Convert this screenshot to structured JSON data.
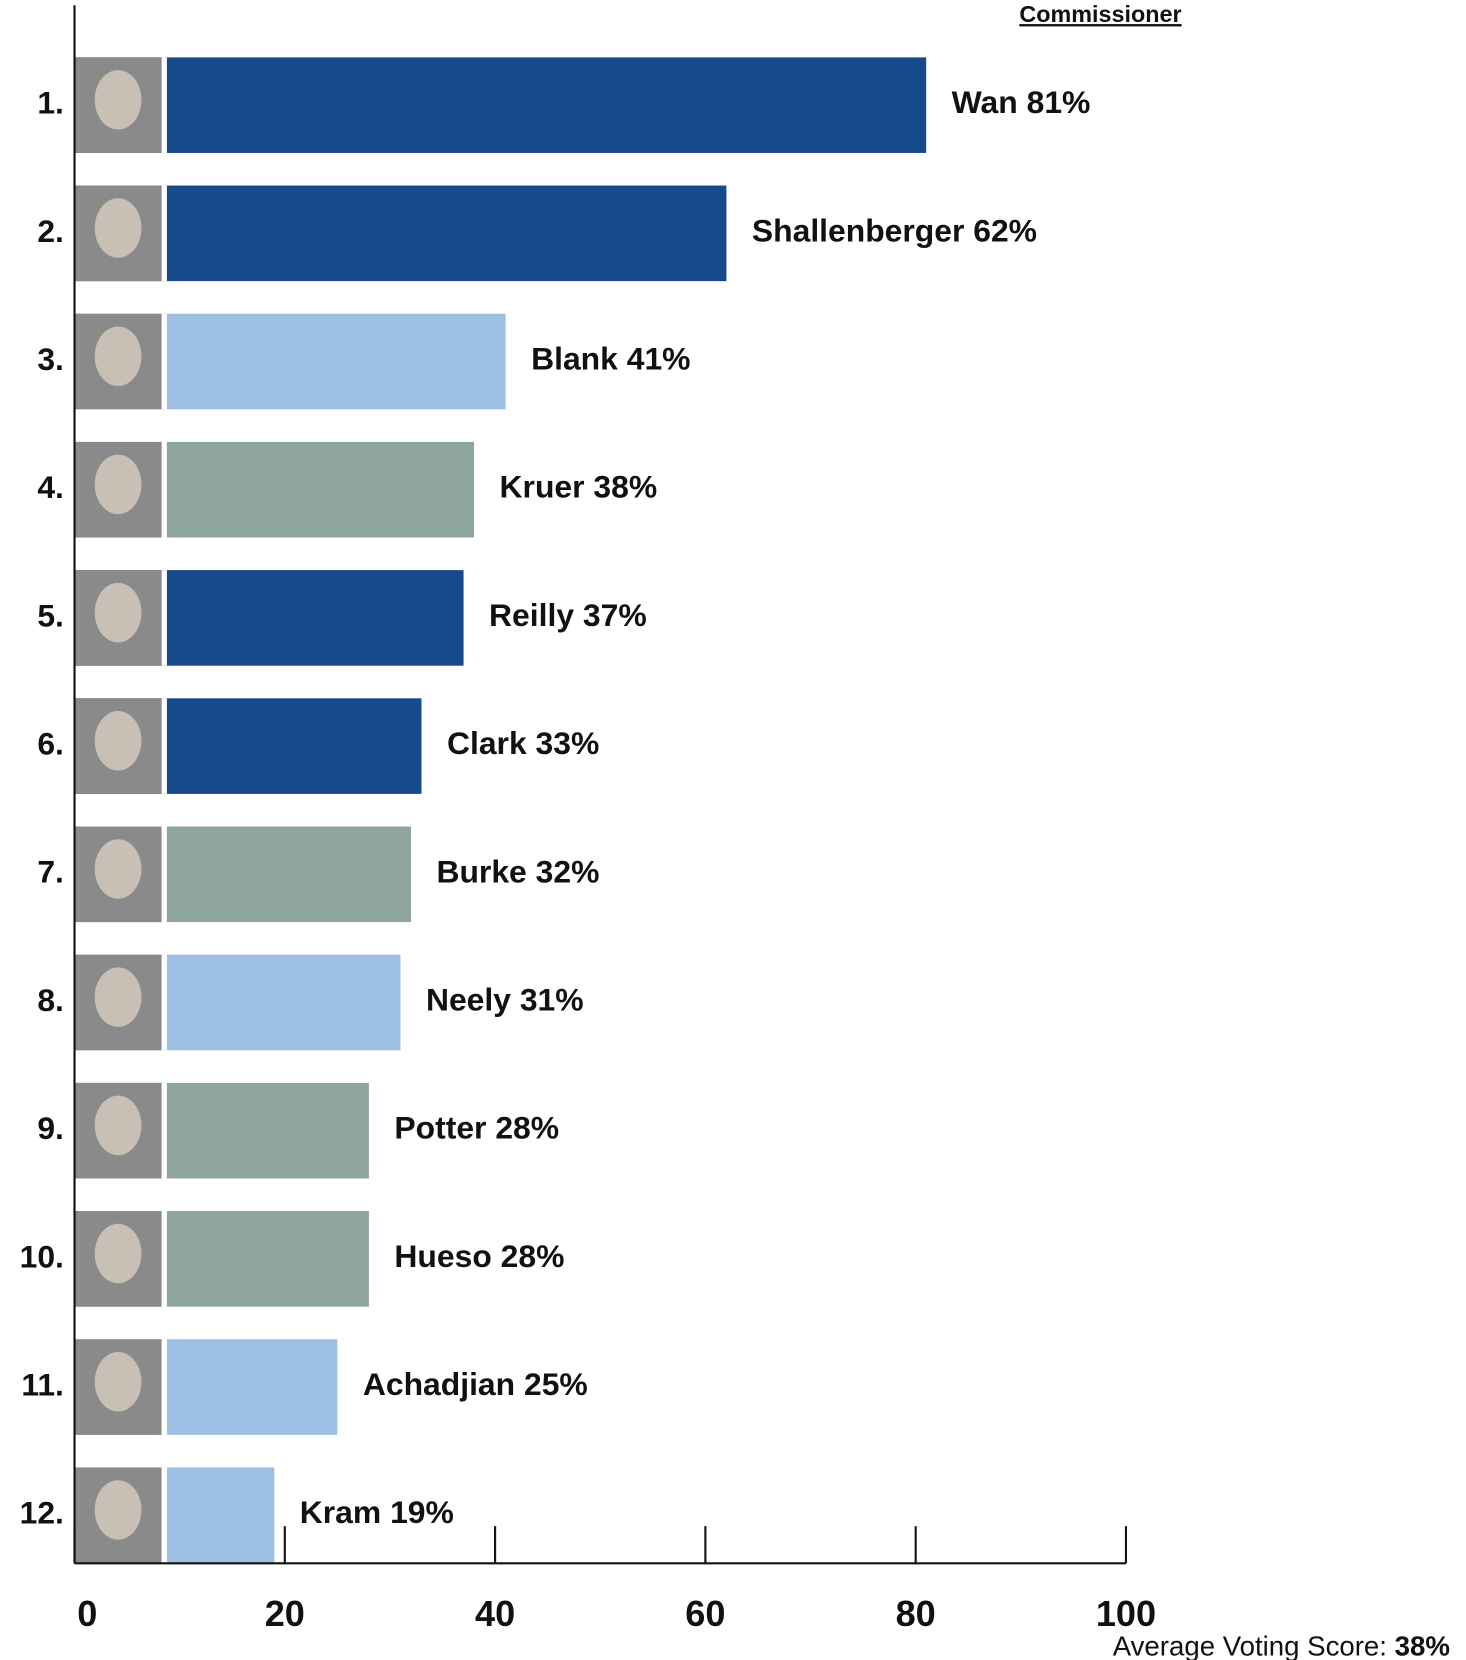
{
  "chart_data": {
    "type": "bar",
    "orientation": "horizontal",
    "header": "Commissioner",
    "ranks": [
      "1.",
      "2.",
      "3.",
      "4.",
      "5.",
      "6.",
      "7.",
      "8.",
      "9.",
      "10.",
      "11.",
      "12."
    ],
    "categories": [
      "Wan",
      "Shallenberger",
      "Blank",
      "Kruer",
      "Reilly",
      "Clark",
      "Burke",
      "Neely",
      "Potter",
      "Hueso",
      "Achadjian",
      "Kram"
    ],
    "values": [
      81,
      62,
      41,
      38,
      37,
      33,
      32,
      31,
      28,
      28,
      25,
      19
    ],
    "value_labels": [
      "81%",
      "62%",
      "41%",
      "38%",
      "37%",
      "33%",
      "32%",
      "31%",
      "28%",
      "28%",
      "25%",
      "19%"
    ],
    "colors": [
      "#174a8b",
      "#174a8b",
      "#9dc0e4",
      "#8fa5a0",
      "#174a8b",
      "#174a8b",
      "#8fa5a0",
      "#9dc0e4",
      "#8fa5a0",
      "#8fa5a0",
      "#9dc0e4",
      "#9dc0e4"
    ],
    "xlim": [
      0,
      100
    ],
    "xticks": [
      0,
      20,
      40,
      60,
      80,
      100
    ],
    "footnote": "Average Voting Score:",
    "footnote_value": "38%"
  }
}
